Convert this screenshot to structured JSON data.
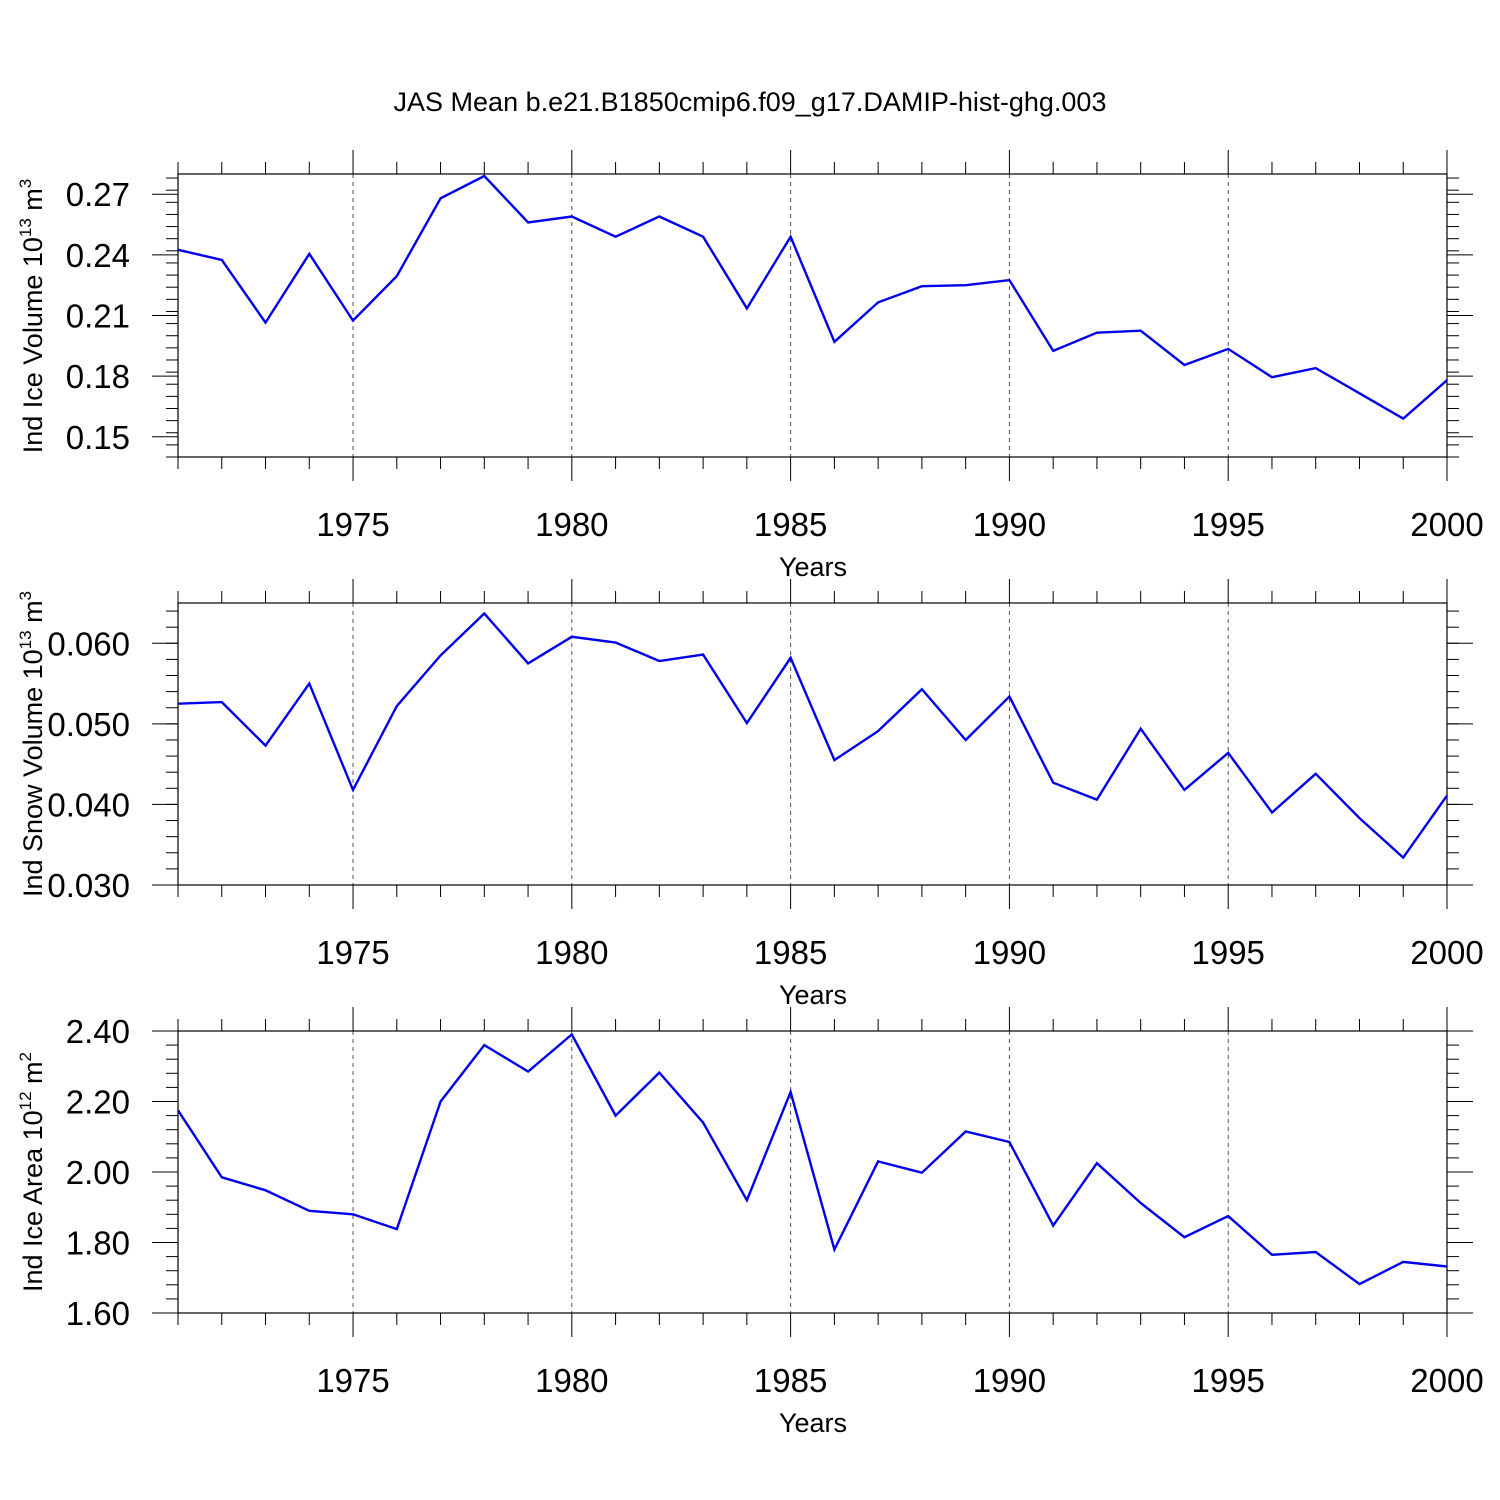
{
  "title": "JAS Mean b.e21.B1850cmip6.f09_g17.DAMIP-hist-ghg.003",
  "colors": {
    "series": "#0000ee",
    "grid": "#555555",
    "axis": "#000000"
  },
  "chart_data": [
    {
      "type": "line",
      "title": "JAS Mean b.e21.B1850cmip6.f09_g17.DAMIP-hist-ghg.003",
      "xlabel": "Years",
      "ylabel": {
        "text": "Ind Ice Volume 10",
        "sup": "13",
        "unit": " m",
        "unit_sup": "3"
      },
      "x": [
        1971,
        1972,
        1973,
        1974,
        1975,
        1976,
        1977,
        1978,
        1979,
        1980,
        1981,
        1982,
        1983,
        1984,
        1985,
        1986,
        1987,
        1988,
        1989,
        1990,
        1991,
        1992,
        1993,
        1994,
        1995,
        1996,
        1997,
        1998,
        1999,
        2000
      ],
      "values": [
        0.2425,
        0.2375,
        0.2065,
        0.2405,
        0.2075,
        0.2295,
        0.268,
        0.279,
        0.256,
        0.259,
        0.249,
        0.259,
        0.249,
        0.2135,
        0.249,
        0.197,
        0.2165,
        0.2245,
        0.225,
        0.2275,
        0.1925,
        0.2015,
        0.2025,
        0.1855,
        0.1935,
        0.1795,
        0.184,
        0.1715,
        0.159,
        0.178
      ],
      "xlim": [
        1971,
        2000
      ],
      "ylim": [
        0.14,
        0.28
      ],
      "xticks": [
        "1975",
        "1980",
        "1985",
        "1990",
        "1995",
        "2000"
      ],
      "yticks": [
        "0.15",
        "0.18",
        "0.21",
        "0.24",
        "0.27"
      ],
      "grid": "vertical dashed at major x ticks"
    },
    {
      "type": "line",
      "xlabel": "Years",
      "ylabel": {
        "text": "Ind Snow Volume 10",
        "sup": "13",
        "unit": " m",
        "unit_sup": "3"
      },
      "x": [
        1971,
        1972,
        1973,
        1974,
        1975,
        1976,
        1977,
        1978,
        1979,
        1980,
        1981,
        1982,
        1983,
        1984,
        1985,
        1986,
        1987,
        1988,
        1989,
        1990,
        1991,
        1992,
        1993,
        1994,
        1995,
        1996,
        1997,
        1998,
        1999,
        2000
      ],
      "values": [
        0.0525,
        0.0527,
        0.0473,
        0.055,
        0.0418,
        0.0522,
        0.0585,
        0.0637,
        0.0575,
        0.0608,
        0.0601,
        0.0578,
        0.0586,
        0.0501,
        0.0582,
        0.0455,
        0.0491,
        0.0543,
        0.048,
        0.0534,
        0.0427,
        0.0406,
        0.0494,
        0.0418,
        0.0464,
        0.039,
        0.0438,
        0.0383,
        0.0334,
        0.0411
      ],
      "xlim": [
        1971,
        2000
      ],
      "ylim": [
        0.03,
        0.065
      ],
      "xticks": [
        "1975",
        "1980",
        "1985",
        "1990",
        "1995",
        "2000"
      ],
      "yticks": [
        "0.030",
        "0.040",
        "0.050",
        "0.060"
      ],
      "grid": "vertical dashed at major x ticks"
    },
    {
      "type": "line",
      "xlabel": "Years",
      "ylabel": {
        "text": "Ind Ice Area 10",
        "sup": "12",
        "unit": " m",
        "unit_sup": "2"
      },
      "x": [
        1971,
        1972,
        1973,
        1974,
        1975,
        1976,
        1977,
        1978,
        1979,
        1980,
        1981,
        1982,
        1983,
        1984,
        1985,
        1986,
        1987,
        1988,
        1989,
        1990,
        1991,
        1992,
        1993,
        1994,
        1995,
        1996,
        1997,
        1998,
        1999,
        2000
      ],
      "values": [
        2.175,
        1.985,
        1.948,
        1.89,
        1.88,
        1.838,
        2.2,
        2.36,
        2.285,
        2.39,
        2.16,
        2.282,
        2.14,
        1.92,
        2.227,
        1.78,
        2.03,
        1.998,
        2.115,
        2.085,
        1.848,
        2.025,
        1.912,
        1.815,
        1.875,
        1.765,
        1.773,
        1.682,
        1.745,
        1.732
      ],
      "xlim": [
        1971,
        2000
      ],
      "ylim": [
        1.6,
        2.4
      ],
      "xticks": [
        "1975",
        "1980",
        "1985",
        "1990",
        "1995",
        "2000"
      ],
      "yticks": [
        "1.60",
        "1.80",
        "2.00",
        "2.20",
        "2.40"
      ],
      "grid": "vertical dashed at major x ticks"
    }
  ]
}
